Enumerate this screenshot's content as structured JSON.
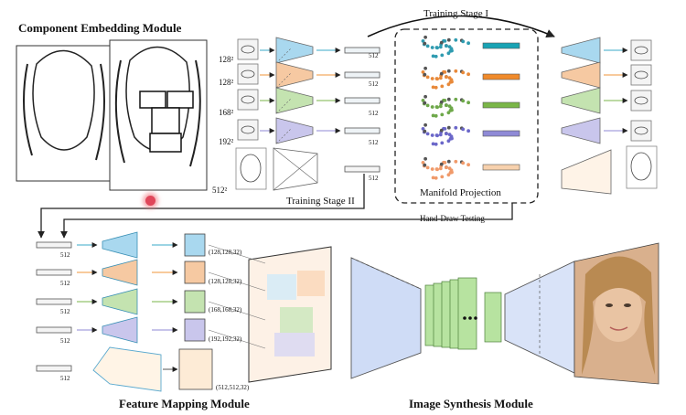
{
  "titles": {
    "component_embedding": "Component Embedding Module",
    "feature_mapping": "Feature Mapping Module",
    "image_synthesis": "Image Synthesis Module"
  },
  "stages": {
    "stage1": "Training Stage I",
    "stage2": "Training  Stage II",
    "manifold": "Manifold Projection",
    "hand_draw": "Hand-Draw Testing"
  },
  "inputs": [
    "128²",
    "128²",
    "168²",
    "192²",
    "512²"
  ],
  "latent_dim": "512",
  "feature_sizes": [
    "(128,128,32)",
    "(128,128,32)",
    "(168,168,32)",
    "(192,192,32)",
    "(512,512,32)"
  ],
  "colors": {
    "blue": "#a9d8ef",
    "orange": "#f6c9a2",
    "green": "#c4e3b0",
    "purple": "#c9c6ec",
    "peach": "#fbe5cf",
    "teal_bar": "#19a3b4",
    "orange_bar": "#f08a2a",
    "green_bar": "#7ab648",
    "purple_bar": "#8f8ad6",
    "peach_bar": "#f7d1ad",
    "synth_green": "#b7e3a0",
    "synth_blue": "#c4d3f2"
  }
}
